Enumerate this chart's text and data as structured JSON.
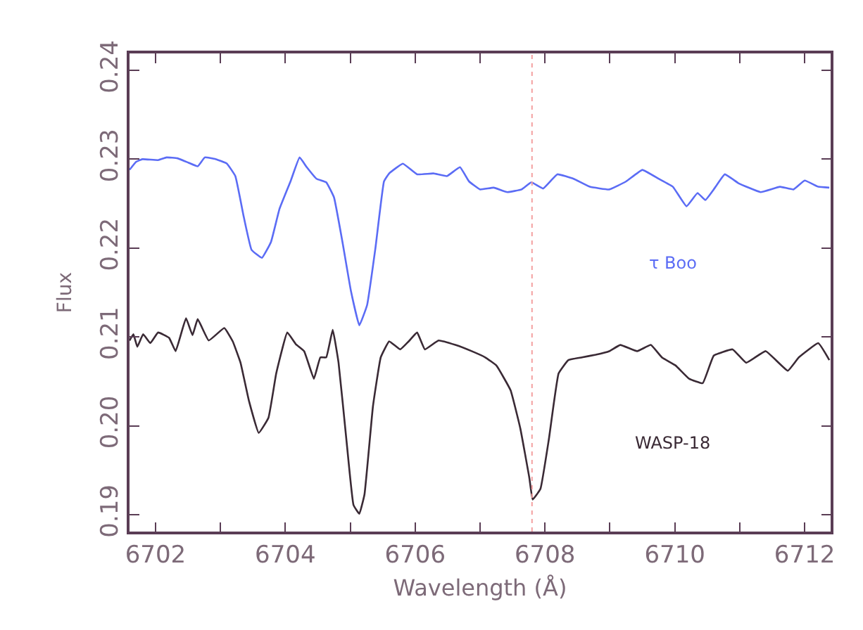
{
  "chart_data": {
    "type": "line",
    "xlabel": "Wavelength (Å)",
    "ylabel": "Flux",
    "xlim": [
      6701.6,
      6712.4
    ],
    "ylim": [
      0.1881,
      0.2419
    ],
    "xticks": [
      6702,
      {
        "value": 6703,
        "label": null
      },
      6704,
      {
        "value": 6705,
        "label": null
      },
      6706,
      {
        "value": 6707,
        "label": null
      },
      6708,
      {
        "value": 6709,
        "label": null
      },
      6710,
      {
        "value": 6711,
        "label": null
      },
      6712
    ],
    "yticks": [
      0.19,
      {
        "value": 0.2,
        "label": "0.20"
      },
      0.21,
      0.22,
      0.23,
      0.24
    ],
    "legend": false,
    "marker": "none",
    "line_style": "solid",
    "ref_lines": [
      {
        "axis": "x",
        "value": 6707.8,
        "label": null,
        "color": "#f4a0a0",
        "line_style": "dotted"
      }
    ],
    "series": [
      {
        "name": "τ Boo",
        "color": "#5b6cf5",
        "x": [
          6701.6,
          6701.7,
          6701.8,
          6702.04,
          6702.17,
          6702.34,
          6702.51,
          6702.65,
          6702.76,
          6702.93,
          6703.1,
          6703.23,
          6703.36,
          6703.48,
          6703.64,
          6703.78,
          6703.91,
          6704.08,
          6704.22,
          6704.33,
          6704.48,
          6704.63,
          6704.75,
          6704.88,
          6705.01,
          6705.14,
          6705.26,
          6705.39,
          6705.52,
          6705.6,
          6705.81,
          6706.03,
          6706.28,
          6706.49,
          6706.69,
          6706.83,
          6707.0,
          6707.21,
          6707.42,
          6707.64,
          6707.79,
          6707.97,
          6708.19,
          6708.44,
          6708.69,
          6708.99,
          6709.25,
          6709.5,
          6709.75,
          6709.97,
          6710.18,
          6710.35,
          6710.47,
          6710.6,
          6710.77,
          6710.98,
          6711.32,
          6711.62,
          6711.83,
          6712.0,
          6712.21,
          6712.38
        ],
        "values": [
          0.2288,
          0.2297,
          0.23,
          0.2299,
          0.2302,
          0.2301,
          0.2296,
          0.2292,
          0.2302,
          0.23,
          0.2295,
          0.2281,
          0.2235,
          0.2198,
          0.2189,
          0.2207,
          0.2244,
          0.2275,
          0.2302,
          0.2291,
          0.2278,
          0.2274,
          0.2257,
          0.2207,
          0.2152,
          0.2113,
          0.2136,
          0.2201,
          0.2275,
          0.2284,
          0.2295,
          0.2283,
          0.2284,
          0.2281,
          0.2291,
          0.2275,
          0.2266,
          0.2268,
          0.2263,
          0.2266,
          0.2274,
          0.2267,
          0.2283,
          0.2278,
          0.2269,
          0.2266,
          0.2275,
          0.2288,
          0.2278,
          0.2269,
          0.2247,
          0.2262,
          0.2254,
          0.2266,
          0.2283,
          0.2273,
          0.2263,
          0.2269,
          0.2266,
          0.2276,
          0.2269,
          0.2268
        ]
      },
      {
        "name": "WASP-18",
        "color": "#3a2a35",
        "x": [
          6701.6,
          6701.66,
          6701.72,
          6701.81,
          6701.92,
          6702.04,
          6702.21,
          6702.31,
          6702.47,
          6702.57,
          6702.65,
          6702.82,
          6703.06,
          6703.19,
          6703.31,
          6703.44,
          6703.59,
          6703.74,
          6703.86,
          6704.03,
          6704.16,
          6704.29,
          6704.44,
          6704.54,
          6704.63,
          6704.73,
          6704.82,
          6704.94,
          6705.05,
          6705.14,
          6705.22,
          6705.35,
          6705.47,
          6705.6,
          6705.77,
          6705.9,
          6706.03,
          6706.15,
          6706.36,
          6706.62,
          6706.87,
          6707.08,
          6707.25,
          6707.47,
          6707.62,
          6707.76,
          6707.81,
          6707.93,
          6708.06,
          6708.21,
          6708.36,
          6708.57,
          6708.78,
          6708.99,
          6709.16,
          6709.42,
          6709.63,
          6709.8,
          6710.01,
          6710.22,
          6710.43,
          6710.6,
          6710.89,
          6711.1,
          6711.4,
          6711.74,
          6711.91,
          6712.21,
          6712.38
        ],
        "values": [
          0.2096,
          0.2103,
          0.2089,
          0.2103,
          0.2093,
          0.2105,
          0.2099,
          0.2084,
          0.2121,
          0.2102,
          0.212,
          0.2096,
          0.211,
          0.2095,
          0.2071,
          0.2028,
          0.1992,
          0.2009,
          0.2059,
          0.2105,
          0.2092,
          0.2084,
          0.2053,
          0.2077,
          0.2077,
          0.2108,
          0.2071,
          0.1985,
          0.1911,
          0.1901,
          0.1923,
          0.2022,
          0.2077,
          0.2095,
          0.2086,
          0.2095,
          0.2105,
          0.2086,
          0.2096,
          0.2091,
          0.2084,
          0.2077,
          0.2068,
          0.204,
          0.1997,
          0.1941,
          0.1917,
          0.1929,
          0.1985,
          0.2059,
          0.2074,
          0.2077,
          0.208,
          0.2084,
          0.2091,
          0.2084,
          0.2091,
          0.2077,
          0.2068,
          0.2053,
          0.2048,
          0.2079,
          0.2086,
          0.2071,
          0.2084,
          0.2062,
          0.2077,
          0.2093,
          0.2074
        ]
      }
    ]
  }
}
